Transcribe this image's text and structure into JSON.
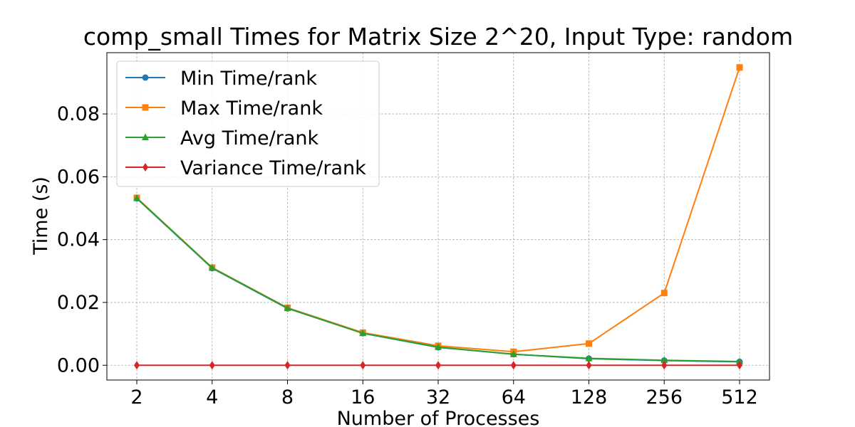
{
  "chart_data": {
    "type": "line",
    "title": "comp_small Times for Matrix Size 2^20, Input Type: random",
    "xlabel": "Number of Processes",
    "ylabel": "Time (s)",
    "categories": [
      "2",
      "4",
      "8",
      "16",
      "32",
      "64",
      "128",
      "256",
      "512"
    ],
    "ylim": [
      -0.0047,
      0.0995
    ],
    "yticks": [
      "0.00",
      "0.02",
      "0.04",
      "0.06",
      "0.08"
    ],
    "grid": true,
    "legend_position": "top-left",
    "series": [
      {
        "name": "Min Time/rank",
        "color": "#1f77b4",
        "marker": "circle",
        "values": [
          0.0531,
          0.0309,
          0.0181,
          0.0102,
          0.0057,
          0.0035,
          0.0021,
          0.0015,
          0.0011
        ]
      },
      {
        "name": "Max Time/rank",
        "color": "#ff7f0e",
        "marker": "square",
        "values": [
          0.0533,
          0.0311,
          0.0183,
          0.0104,
          0.0062,
          0.0043,
          0.0069,
          0.023,
          0.0948
        ]
      },
      {
        "name": "Avg Time/rank",
        "color": "#2ca02c",
        "marker": "triangle",
        "values": [
          0.0532,
          0.031,
          0.0182,
          0.0102,
          0.0058,
          0.0035,
          0.0022,
          0.0016,
          0.0012
        ]
      },
      {
        "name": "Variance Time/rank",
        "color": "#d62728",
        "marker": "diamond",
        "values": [
          0.0,
          0.0,
          0.0,
          0.0,
          0.0,
          0.0,
          0.0,
          0.0,
          0.0
        ]
      }
    ]
  }
}
